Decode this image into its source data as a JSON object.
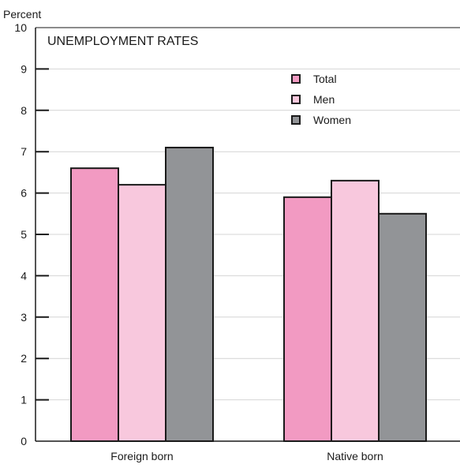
{
  "chart_data": {
    "type": "bar",
    "title": "UNEMPLOYMENT RATES",
    "ylabel": "Percent",
    "xlabel": "",
    "categories": [
      "Foreign born",
      "Native born"
    ],
    "series": [
      {
        "name": "Total",
        "color": "#f29ac2",
        "values": [
          6.6,
          5.9
        ]
      },
      {
        "name": "Men",
        "color": "#f8c8dd",
        "values": [
          6.2,
          6.3
        ]
      },
      {
        "name": "Women",
        "color": "#929497",
        "values": [
          7.1,
          5.5
        ]
      }
    ],
    "ylim": [
      0,
      10
    ],
    "yticks": [
      0,
      1,
      2,
      3,
      4,
      5,
      6,
      7,
      8,
      9,
      10
    ],
    "grid": true,
    "legend_position": "top-right"
  }
}
